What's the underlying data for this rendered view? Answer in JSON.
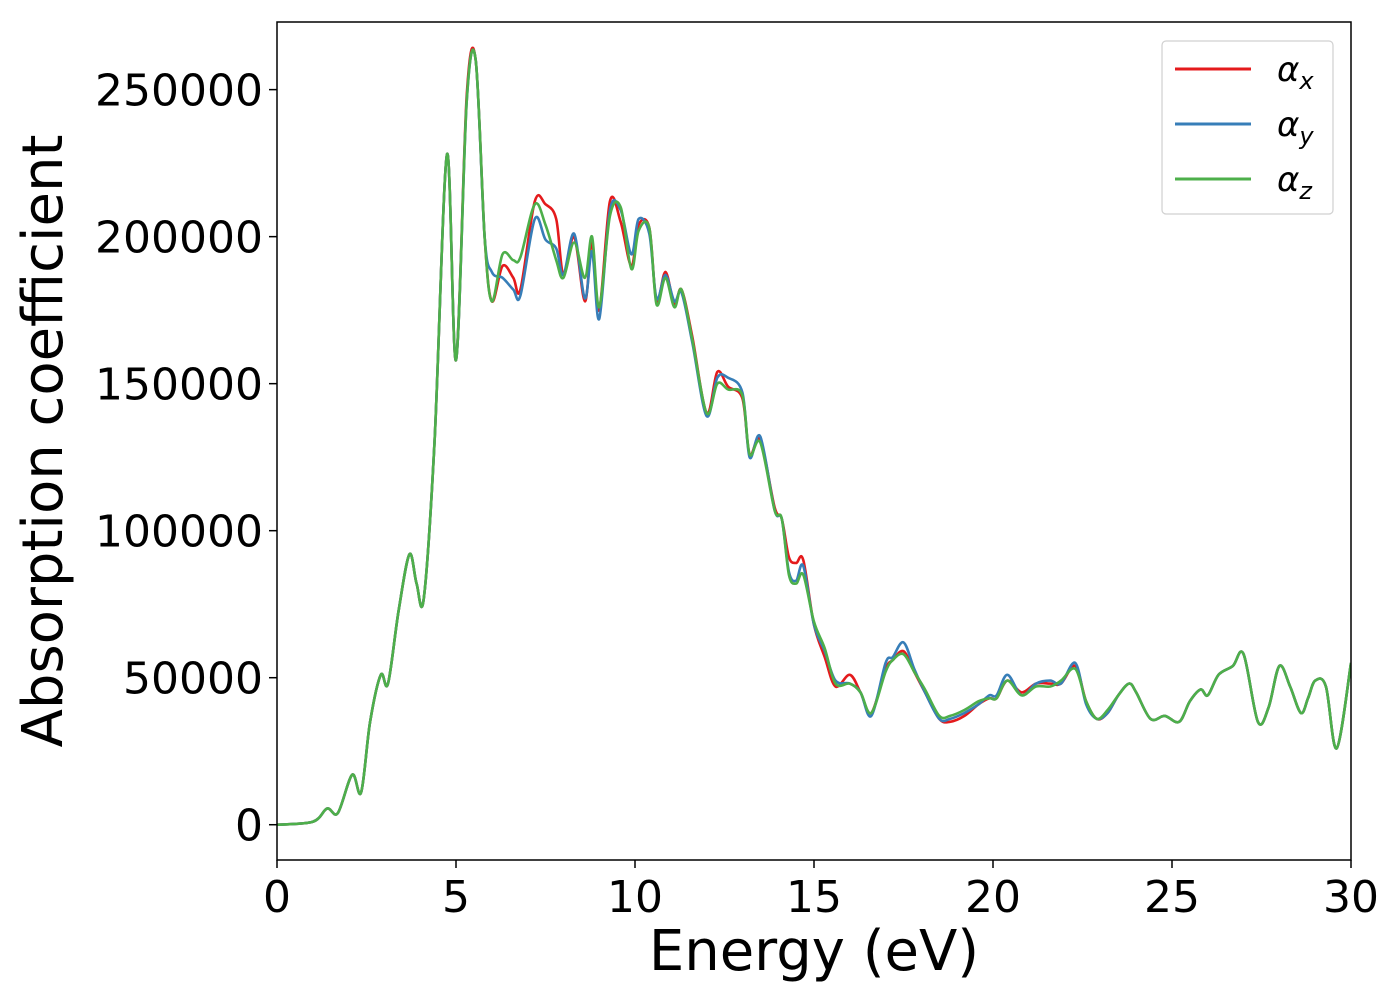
{
  "chart_data": {
    "type": "line",
    "xlabel": "Energy (eV)",
    "ylabel": "Absorption coefficient",
    "xlim": [
      0,
      30
    ],
    "ylim": [
      -12000,
      273000
    ],
    "x_ticks": [
      "0",
      "5",
      "10",
      "15",
      "20",
      "25",
      "30"
    ],
    "y_ticks": [
      "0",
      "50000",
      "100000",
      "150000",
      "200000",
      "250000"
    ],
    "grid": false,
    "legend_position": "top-right",
    "series": [
      {
        "name": "α",
        "subscript": "x",
        "color": "#e41a1c",
        "x": [
          0,
          1.0,
          1.4,
          1.7,
          2.1,
          2.35,
          2.6,
          2.9,
          3.1,
          3.4,
          3.7,
          3.9,
          4.1,
          4.4,
          4.75,
          5.0,
          5.3,
          5.55,
          5.8,
          6.0,
          6.3,
          6.6,
          6.8,
          7.2,
          7.5,
          7.8,
          8.0,
          8.3,
          8.6,
          8.8,
          9.0,
          9.3,
          9.6,
          9.9,
          10.1,
          10.4,
          10.6,
          10.85,
          11.1,
          11.3,
          11.6,
          12.0,
          12.3,
          12.6,
          13.0,
          13.2,
          13.5,
          13.9,
          14.1,
          14.3,
          14.5,
          14.7,
          15.0,
          15.3,
          15.6,
          16.0,
          16.3,
          16.6,
          17.0,
          17.2,
          17.5,
          17.8,
          18.1,
          18.5,
          18.8,
          19.2,
          19.6,
          19.9,
          20.1,
          20.4,
          20.8,
          21.2,
          21.6,
          21.9,
          22.3,
          22.6,
          22.9,
          23.2,
          23.5,
          23.8,
          24.0,
          24.4,
          24.8,
          25.2,
          25.5,
          25.8,
          26.0,
          26.3,
          26.7,
          27.0,
          27.4,
          27.7,
          28.0,
          28.3,
          28.6,
          28.8,
          29.0,
          29.3,
          29.6,
          30.0
        ],
        "y": [
          0,
          1000,
          5500,
          4000,
          17000,
          11000,
          35000,
          51000,
          48000,
          73000,
          92000,
          82000,
          77000,
          130000,
          228000,
          158000,
          248000,
          260000,
          200000,
          178000,
          190000,
          186000,
          182000,
          212000,
          211000,
          206000,
          187000,
          200000,
          178000,
          198000,
          175000,
          212000,
          205000,
          190000,
          204000,
          203000,
          178000,
          188000,
          177000,
          182000,
          166000,
          140000,
          154000,
          149000,
          145000,
          126000,
          131000,
          108000,
          104000,
          91000,
          89000,
          90000,
          68000,
          57000,
          47000,
          51000,
          45000,
          38000,
          53000,
          56000,
          59000,
          52000,
          45000,
          36000,
          35000,
          37000,
          41000,
          43000,
          43000,
          49000,
          45000,
          48000,
          48000,
          48000,
          54000,
          42000,
          36000,
          38000,
          44000,
          48000,
          45000,
          36000,
          37000,
          35000,
          42000,
          46000,
          44000,
          51000,
          54000,
          58000,
          35000,
          40000,
          54000,
          47000,
          38000,
          43000,
          49000,
          47000,
          26000,
          55000
        ]
      },
      {
        "name": "α",
        "subscript": "y",
        "color": "#377eb8",
        "x": [
          0,
          1.0,
          1.4,
          1.7,
          2.1,
          2.35,
          2.6,
          2.9,
          3.1,
          3.4,
          3.7,
          3.9,
          4.1,
          4.4,
          4.75,
          5.0,
          5.3,
          5.55,
          5.8,
          6.0,
          6.3,
          6.6,
          6.8,
          7.2,
          7.5,
          7.8,
          8.0,
          8.3,
          8.6,
          8.8,
          9.0,
          9.3,
          9.6,
          9.9,
          10.1,
          10.4,
          10.6,
          10.85,
          11.1,
          11.3,
          11.6,
          12.0,
          12.3,
          12.6,
          13.0,
          13.2,
          13.5,
          13.9,
          14.1,
          14.3,
          14.5,
          14.7,
          15.0,
          15.3,
          15.6,
          16.0,
          16.3,
          16.6,
          17.0,
          17.2,
          17.5,
          17.8,
          18.1,
          18.5,
          18.8,
          19.2,
          19.6,
          19.9,
          20.1,
          20.4,
          20.8,
          21.2,
          21.6,
          21.9,
          22.3,
          22.6,
          22.9,
          23.2,
          23.5,
          23.8,
          24.0,
          24.4,
          24.8,
          25.2,
          25.5,
          25.8,
          26.0,
          26.3,
          26.7,
          27.0,
          27.4,
          27.7,
          28.0,
          28.3,
          28.6,
          28.8,
          29.0,
          29.3,
          29.6,
          30.0
        ],
        "y": [
          0,
          1000,
          5500,
          4000,
          17000,
          11000,
          35000,
          51000,
          48000,
          73000,
          92000,
          82000,
          77000,
          130000,
          228000,
          158000,
          246000,
          260000,
          200000,
          188000,
          186000,
          182000,
          180000,
          206000,
          199000,
          196000,
          187000,
          201000,
          179000,
          195000,
          172000,
          209000,
          209000,
          194000,
          206000,
          201000,
          179000,
          187000,
          178000,
          181000,
          164000,
          139000,
          152000,
          152000,
          147000,
          125000,
          132000,
          107000,
          104000,
          86000,
          83000,
          88000,
          68000,
          59000,
          49000,
          48000,
          45000,
          37000,
          55000,
          57000,
          62000,
          53000,
          45000,
          36000,
          36000,
          38000,
          41000,
          44000,
          44000,
          51000,
          44000,
          48000,
          49000,
          48000,
          55000,
          41000,
          36000,
          38000,
          44000,
          48000,
          45000,
          36000,
          37000,
          35000,
          42000,
          46000,
          44000,
          51000,
          54000,
          58000,
          35000,
          40000,
          54000,
          47000,
          38000,
          43000,
          49000,
          47000,
          26000,
          55000
        ]
      },
      {
        "name": "α",
        "subscript": "z",
        "color": "#4daf4a",
        "x": [
          0,
          1.0,
          1.4,
          1.7,
          2.1,
          2.35,
          2.6,
          2.9,
          3.1,
          3.4,
          3.7,
          3.9,
          4.1,
          4.4,
          4.75,
          5.0,
          5.3,
          5.55,
          5.8,
          6.0,
          6.3,
          6.6,
          6.8,
          7.2,
          7.5,
          7.8,
          8.0,
          8.3,
          8.6,
          8.8,
          9.0,
          9.3,
          9.6,
          9.9,
          10.1,
          10.4,
          10.6,
          10.85,
          11.1,
          11.3,
          11.6,
          12.0,
          12.3,
          12.6,
          13.0,
          13.2,
          13.5,
          13.9,
          14.1,
          14.3,
          14.5,
          14.7,
          15.0,
          15.3,
          15.6,
          16.0,
          16.3,
          16.6,
          17.0,
          17.2,
          17.5,
          17.8,
          18.1,
          18.5,
          18.8,
          19.2,
          19.6,
          19.9,
          20.1,
          20.4,
          20.8,
          21.2,
          21.6,
          21.9,
          22.3,
          22.6,
          22.9,
          23.2,
          23.5,
          23.8,
          24.0,
          24.4,
          24.8,
          25.2,
          25.5,
          25.8,
          26.0,
          26.3,
          26.7,
          27.0,
          27.4,
          27.7,
          28.0,
          28.3,
          28.6,
          28.8,
          29.0,
          29.3,
          29.6,
          30.0
        ],
        "y": [
          0,
          1000,
          5500,
          4000,
          17000,
          11000,
          35000,
          51000,
          48000,
          73000,
          92000,
          82000,
          77000,
          130000,
          228000,
          158000,
          246000,
          260000,
          200000,
          178000,
          194000,
          192000,
          193000,
          211000,
          204000,
          192000,
          186000,
          198000,
          186000,
          200000,
          176000,
          207000,
          210000,
          189000,
          202000,
          203000,
          177000,
          186000,
          176000,
          182000,
          165000,
          140000,
          150000,
          148000,
          146000,
          126000,
          130000,
          107000,
          104000,
          85000,
          82000,
          85000,
          69000,
          60000,
          48000,
          48000,
          45000,
          38000,
          52000,
          56000,
          58000,
          52000,
          46000,
          37000,
          37000,
          39000,
          42000,
          43000,
          43000,
          49000,
          44000,
          47000,
          47000,
          49000,
          53000,
          42000,
          36000,
          39000,
          44000,
          48000,
          45000,
          36000,
          37000,
          35000,
          42000,
          46000,
          44000,
          51000,
          54000,
          58000,
          35000,
          40000,
          54000,
          47000,
          38000,
          43000,
          49000,
          47000,
          26000,
          55000
        ]
      }
    ]
  }
}
